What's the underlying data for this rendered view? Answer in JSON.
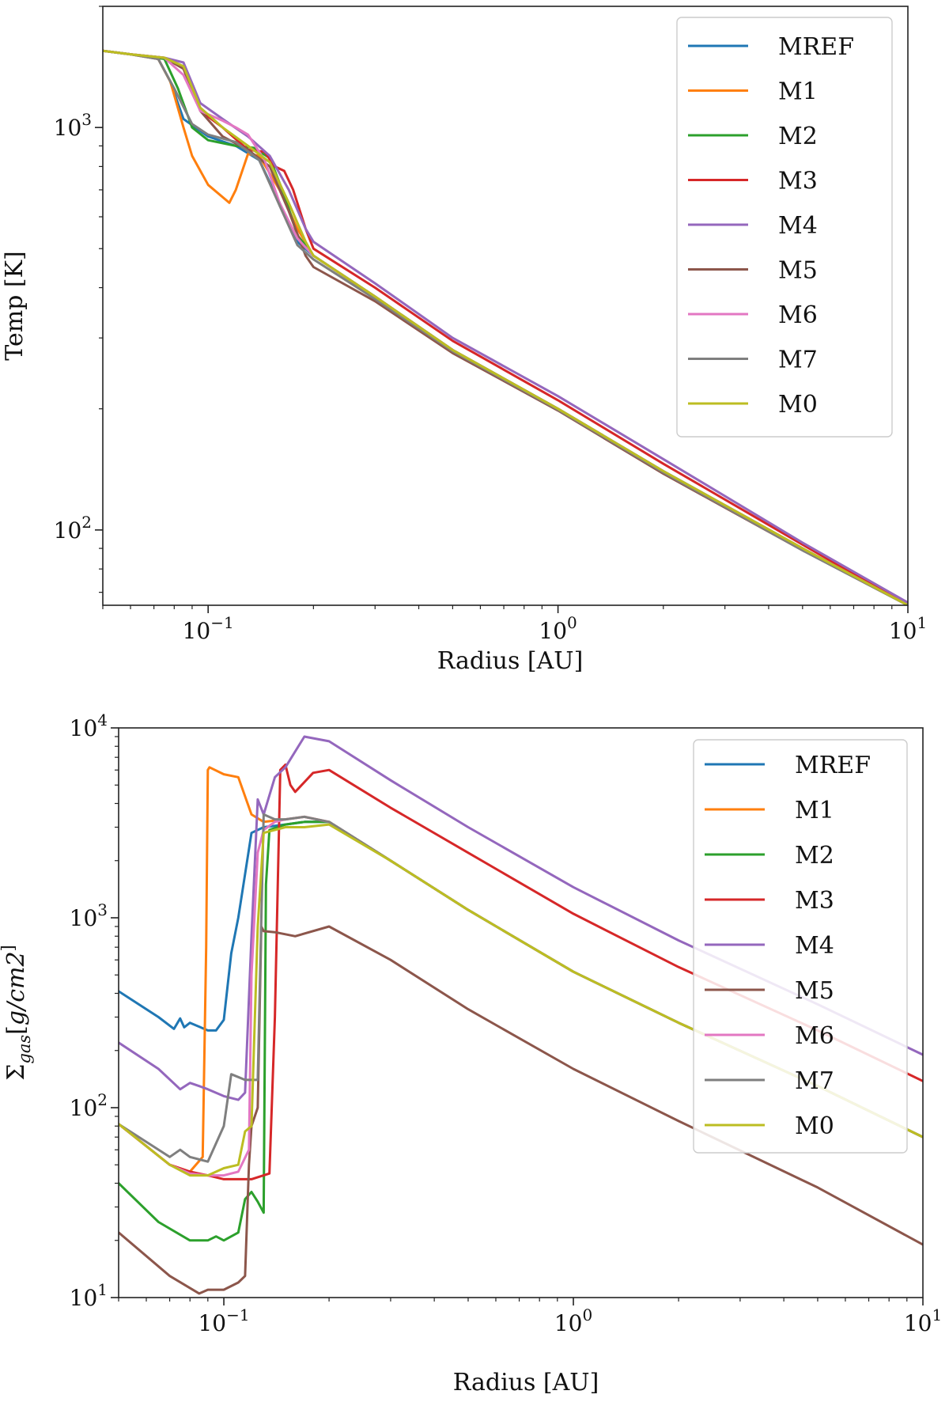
{
  "chart_data": [
    {
      "type": "line",
      "xscale": "log",
      "yscale": "log",
      "xlim": [
        0.05,
        10
      ],
      "ylim": [
        65,
        2000
      ],
      "xlabel": "Radius [AU]",
      "ylabel": "Temp [K]",
      "xticks": [
        {
          "value": 0.1,
          "mant": "10",
          "exp": "−1"
        },
        {
          "value": 1,
          "mant": "10",
          "exp": "0"
        },
        {
          "value": 10,
          "mant": "10",
          "exp": "1"
        }
      ],
      "yticks": [
        {
          "value": 100,
          "mant": "10",
          "exp": "2"
        },
        {
          "value": 1000,
          "mant": "10",
          "exp": "3"
        }
      ],
      "legend": "top-right",
      "series": [
        {
          "name": "MREF",
          "color": "#1f77b4",
          "x": [
            0.05,
            0.06,
            0.072,
            0.078,
            0.085,
            0.1,
            0.12,
            0.14,
            0.16,
            0.18,
            0.2,
            0.3,
            0.5,
            1,
            2,
            5,
            10
          ],
          "y": [
            1550,
            1520,
            1480,
            1300,
            1050,
            950,
            900,
            830,
            650,
            520,
            480,
            380,
            280,
            200,
            140,
            90,
            65
          ]
        },
        {
          "name": "M1",
          "color": "#ff7f0e",
          "x": [
            0.05,
            0.06,
            0.072,
            0.078,
            0.085,
            0.09,
            0.1,
            0.115,
            0.12,
            0.13,
            0.14,
            0.16,
            0.18,
            0.2,
            0.3,
            0.5,
            1,
            2,
            5,
            10
          ],
          "y": [
            1550,
            1520,
            1480,
            1300,
            1000,
            850,
            720,
            650,
            700,
            860,
            850,
            700,
            560,
            480,
            380,
            280,
            200,
            140,
            90,
            65
          ]
        },
        {
          "name": "M2",
          "color": "#2ca02c",
          "x": [
            0.05,
            0.06,
            0.075,
            0.082,
            0.09,
            0.1,
            0.12,
            0.135,
            0.15,
            0.165,
            0.18,
            0.2,
            0.3,
            0.5,
            1,
            2,
            5,
            10
          ],
          "y": [
            1550,
            1520,
            1480,
            1250,
            1000,
            930,
            900,
            890,
            840,
            680,
            540,
            480,
            380,
            280,
            200,
            140,
            90,
            65
          ]
        },
        {
          "name": "M3",
          "color": "#d62728",
          "x": [
            0.05,
            0.06,
            0.075,
            0.085,
            0.095,
            0.11,
            0.13,
            0.145,
            0.155,
            0.165,
            0.175,
            0.19,
            0.2,
            0.3,
            0.5,
            1,
            2,
            5,
            10
          ],
          "y": [
            1550,
            1520,
            1490,
            1400,
            1100,
            1000,
            880,
            870,
            800,
            780,
            700,
            560,
            500,
            400,
            295,
            210,
            146,
            92,
            65
          ]
        },
        {
          "name": "M4",
          "color": "#9467bd",
          "x": [
            0.05,
            0.06,
            0.075,
            0.085,
            0.095,
            0.11,
            0.13,
            0.15,
            0.17,
            0.19,
            0.2,
            0.3,
            0.5,
            1,
            2,
            5,
            10
          ],
          "y": [
            1550,
            1520,
            1490,
            1450,
            1150,
            1050,
            950,
            850,
            700,
            560,
            520,
            410,
            300,
            215,
            150,
            93,
            66
          ]
        },
        {
          "name": "M5",
          "color": "#8c564b",
          "x": [
            0.05,
            0.06,
            0.075,
            0.085,
            0.095,
            0.11,
            0.13,
            0.15,
            0.17,
            0.19,
            0.2,
            0.3,
            0.5,
            1,
            2,
            5,
            10
          ],
          "y": [
            1550,
            1520,
            1490,
            1400,
            1100,
            950,
            880,
            800,
            620,
            480,
            450,
            370,
            275,
            198,
            138,
            89,
            65
          ]
        },
        {
          "name": "M6",
          "color": "#e377c2",
          "x": [
            0.05,
            0.06,
            0.075,
            0.085,
            0.095,
            0.11,
            0.12,
            0.13,
            0.145,
            0.16,
            0.18,
            0.2,
            0.3,
            0.5,
            1,
            2,
            5,
            10
          ],
          "y": [
            1550,
            1520,
            1490,
            1350,
            1100,
            1040,
            1000,
            960,
            830,
            650,
            530,
            480,
            380,
            280,
            200,
            140,
            90,
            65
          ]
        },
        {
          "name": "M7",
          "color": "#7f7f7f",
          "x": [
            0.05,
            0.06,
            0.072,
            0.08,
            0.09,
            0.1,
            0.12,
            0.14,
            0.16,
            0.18,
            0.2,
            0.3,
            0.5,
            1,
            2,
            5,
            10
          ],
          "y": [
            1550,
            1520,
            1480,
            1250,
            1020,
            960,
            920,
            830,
            640,
            510,
            470,
            375,
            278,
            199,
            139,
            89,
            65
          ]
        },
        {
          "name": "M0",
          "color": "#bcbd22",
          "x": [
            0.05,
            0.06,
            0.075,
            0.085,
            0.095,
            0.11,
            0.13,
            0.15,
            0.17,
            0.19,
            0.2,
            0.3,
            0.5,
            1,
            2,
            5,
            10
          ],
          "y": [
            1550,
            1520,
            1490,
            1420,
            1120,
            1000,
            900,
            820,
            650,
            520,
            480,
            380,
            280,
            200,
            140,
            90,
            65
          ]
        }
      ]
    },
    {
      "type": "line",
      "xscale": "log",
      "yscale": "log",
      "xlim": [
        0.05,
        10
      ],
      "ylim": [
        10,
        10000
      ],
      "xlabel": "Radius [AU]",
      "ylabel": "Σgas[g/cm2]",
      "xticks": [
        {
          "value": 0.1,
          "mant": "10",
          "exp": "−1"
        },
        {
          "value": 1,
          "mant": "10",
          "exp": "0"
        },
        {
          "value": 10,
          "mant": "10",
          "exp": "1"
        }
      ],
      "yticks": [
        {
          "value": 10,
          "mant": "10",
          "exp": "1"
        },
        {
          "value": 100,
          "mant": "10",
          "exp": "2"
        },
        {
          "value": 1000,
          "mant": "10",
          "exp": "3"
        },
        {
          "value": 10000,
          "mant": "10",
          "exp": "4"
        }
      ],
      "legend": "top-right",
      "series": [
        {
          "name": "MREF",
          "color": "#1f77b4",
          "x": [
            0.05,
            0.065,
            0.072,
            0.075,
            0.077,
            0.08,
            0.09,
            0.095,
            0.1,
            0.105,
            0.11,
            0.12,
            0.13,
            0.15,
            0.17,
            0.2,
            0.3,
            0.5,
            1,
            2,
            5,
            10
          ],
          "y": [
            410,
            300,
            260,
            295,
            265,
            280,
            255,
            255,
            290,
            650,
            1000,
            2800,
            3000,
            3100,
            3200,
            3200,
            2000,
            1100,
            520,
            280,
            130,
            70
          ]
        },
        {
          "name": "M1",
          "color": "#ff7f0e",
          "x": [
            0.05,
            0.07,
            0.08,
            0.087,
            0.089,
            0.09,
            0.091,
            0.1,
            0.11,
            0.12,
            0.13,
            0.15,
            0.17,
            0.2,
            0.3,
            0.5,
            1,
            2,
            5,
            10
          ],
          "y": [
            82,
            50,
            46,
            55,
            700,
            6000,
            6200,
            5700,
            5500,
            3500,
            3200,
            3300,
            3400,
            3200,
            2000,
            1100,
            520,
            280,
            130,
            70
          ]
        },
        {
          "name": "M2",
          "color": "#2ca02c",
          "x": [
            0.05,
            0.065,
            0.08,
            0.09,
            0.095,
            0.1,
            0.11,
            0.115,
            0.12,
            0.125,
            0.13,
            0.132,
            0.135,
            0.15,
            0.17,
            0.2,
            0.3,
            0.5,
            1,
            2,
            5,
            10
          ],
          "y": [
            40,
            25,
            20,
            20,
            21,
            20,
            22,
            33,
            36,
            32,
            28,
            1500,
            2900,
            3100,
            3200,
            3200,
            2000,
            1100,
            520,
            280,
            130,
            70
          ]
        },
        {
          "name": "M3",
          "color": "#d62728",
          "x": [
            0.05,
            0.07,
            0.08,
            0.09,
            0.1,
            0.12,
            0.135,
            0.14,
            0.145,
            0.15,
            0.155,
            0.16,
            0.18,
            0.2,
            0.3,
            0.5,
            1,
            2,
            5,
            10
          ],
          "y": [
            82,
            50,
            46,
            44,
            42,
            42,
            45,
            300,
            6000,
            6400,
            5000,
            4600,
            5800,
            6000,
            3800,
            2200,
            1050,
            550,
            255,
            138
          ]
        },
        {
          "name": "M4",
          "color": "#9467bd",
          "x": [
            0.05,
            0.065,
            0.075,
            0.08,
            0.085,
            0.09,
            0.1,
            0.11,
            0.115,
            0.12,
            0.125,
            0.13,
            0.14,
            0.15,
            0.17,
            0.2,
            0.3,
            0.5,
            1,
            2,
            5,
            10
          ],
          "y": [
            220,
            160,
            125,
            135,
            130,
            125,
            115,
            110,
            120,
            800,
            4200,
            3500,
            5500,
            6200,
            9000,
            8500,
            5300,
            3000,
            1450,
            760,
            350,
            190
          ]
        },
        {
          "name": "M5",
          "color": "#8c564b",
          "x": [
            0.05,
            0.07,
            0.085,
            0.09,
            0.1,
            0.11,
            0.115,
            0.118,
            0.12,
            0.125,
            0.128,
            0.13,
            0.14,
            0.16,
            0.2,
            0.3,
            0.5,
            1,
            2,
            5,
            10
          ],
          "y": [
            22,
            13,
            10.5,
            11,
            11,
            12,
            13,
            50,
            80,
            100,
            900,
            850,
            840,
            800,
            900,
            600,
            330,
            160,
            85,
            38,
            19
          ]
        },
        {
          "name": "M6",
          "color": "#e377c2",
          "x": [
            0.05,
            0.07,
            0.08,
            0.09,
            0.1,
            0.11,
            0.118,
            0.12,
            0.125,
            0.13,
            0.14,
            0.15,
            0.17,
            0.2,
            0.3,
            0.5,
            1,
            2,
            5,
            10
          ],
          "y": [
            82,
            50,
            45,
            44,
            44,
            46,
            60,
            500,
            2200,
            2900,
            3200,
            3300,
            3400,
            3200,
            2000,
            1100,
            520,
            280,
            130,
            70
          ]
        },
        {
          "name": "M7",
          "color": "#7f7f7f",
          "x": [
            0.05,
            0.07,
            0.075,
            0.08,
            0.09,
            0.1,
            0.105,
            0.11,
            0.115,
            0.12,
            0.125,
            0.13,
            0.14,
            0.15,
            0.17,
            0.2,
            0.3,
            0.5,
            1,
            2,
            5,
            10
          ],
          "y": [
            82,
            55,
            60,
            55,
            52,
            80,
            150,
            145,
            140,
            140,
            140,
            3500,
            3300,
            3300,
            3400,
            3200,
            2000,
            1100,
            520,
            280,
            130,
            70
          ]
        },
        {
          "name": "M0",
          "color": "#bcbd22",
          "x": [
            0.05,
            0.07,
            0.08,
            0.09,
            0.1,
            0.11,
            0.115,
            0.12,
            0.125,
            0.13,
            0.15,
            0.17,
            0.2,
            0.3,
            0.5,
            1,
            2,
            5,
            10
          ],
          "y": [
            82,
            50,
            44,
            44,
            48,
            50,
            75,
            80,
            900,
            2800,
            3000,
            3000,
            3100,
            2000,
            1100,
            520,
            280,
            130,
            70
          ]
        }
      ]
    }
  ]
}
